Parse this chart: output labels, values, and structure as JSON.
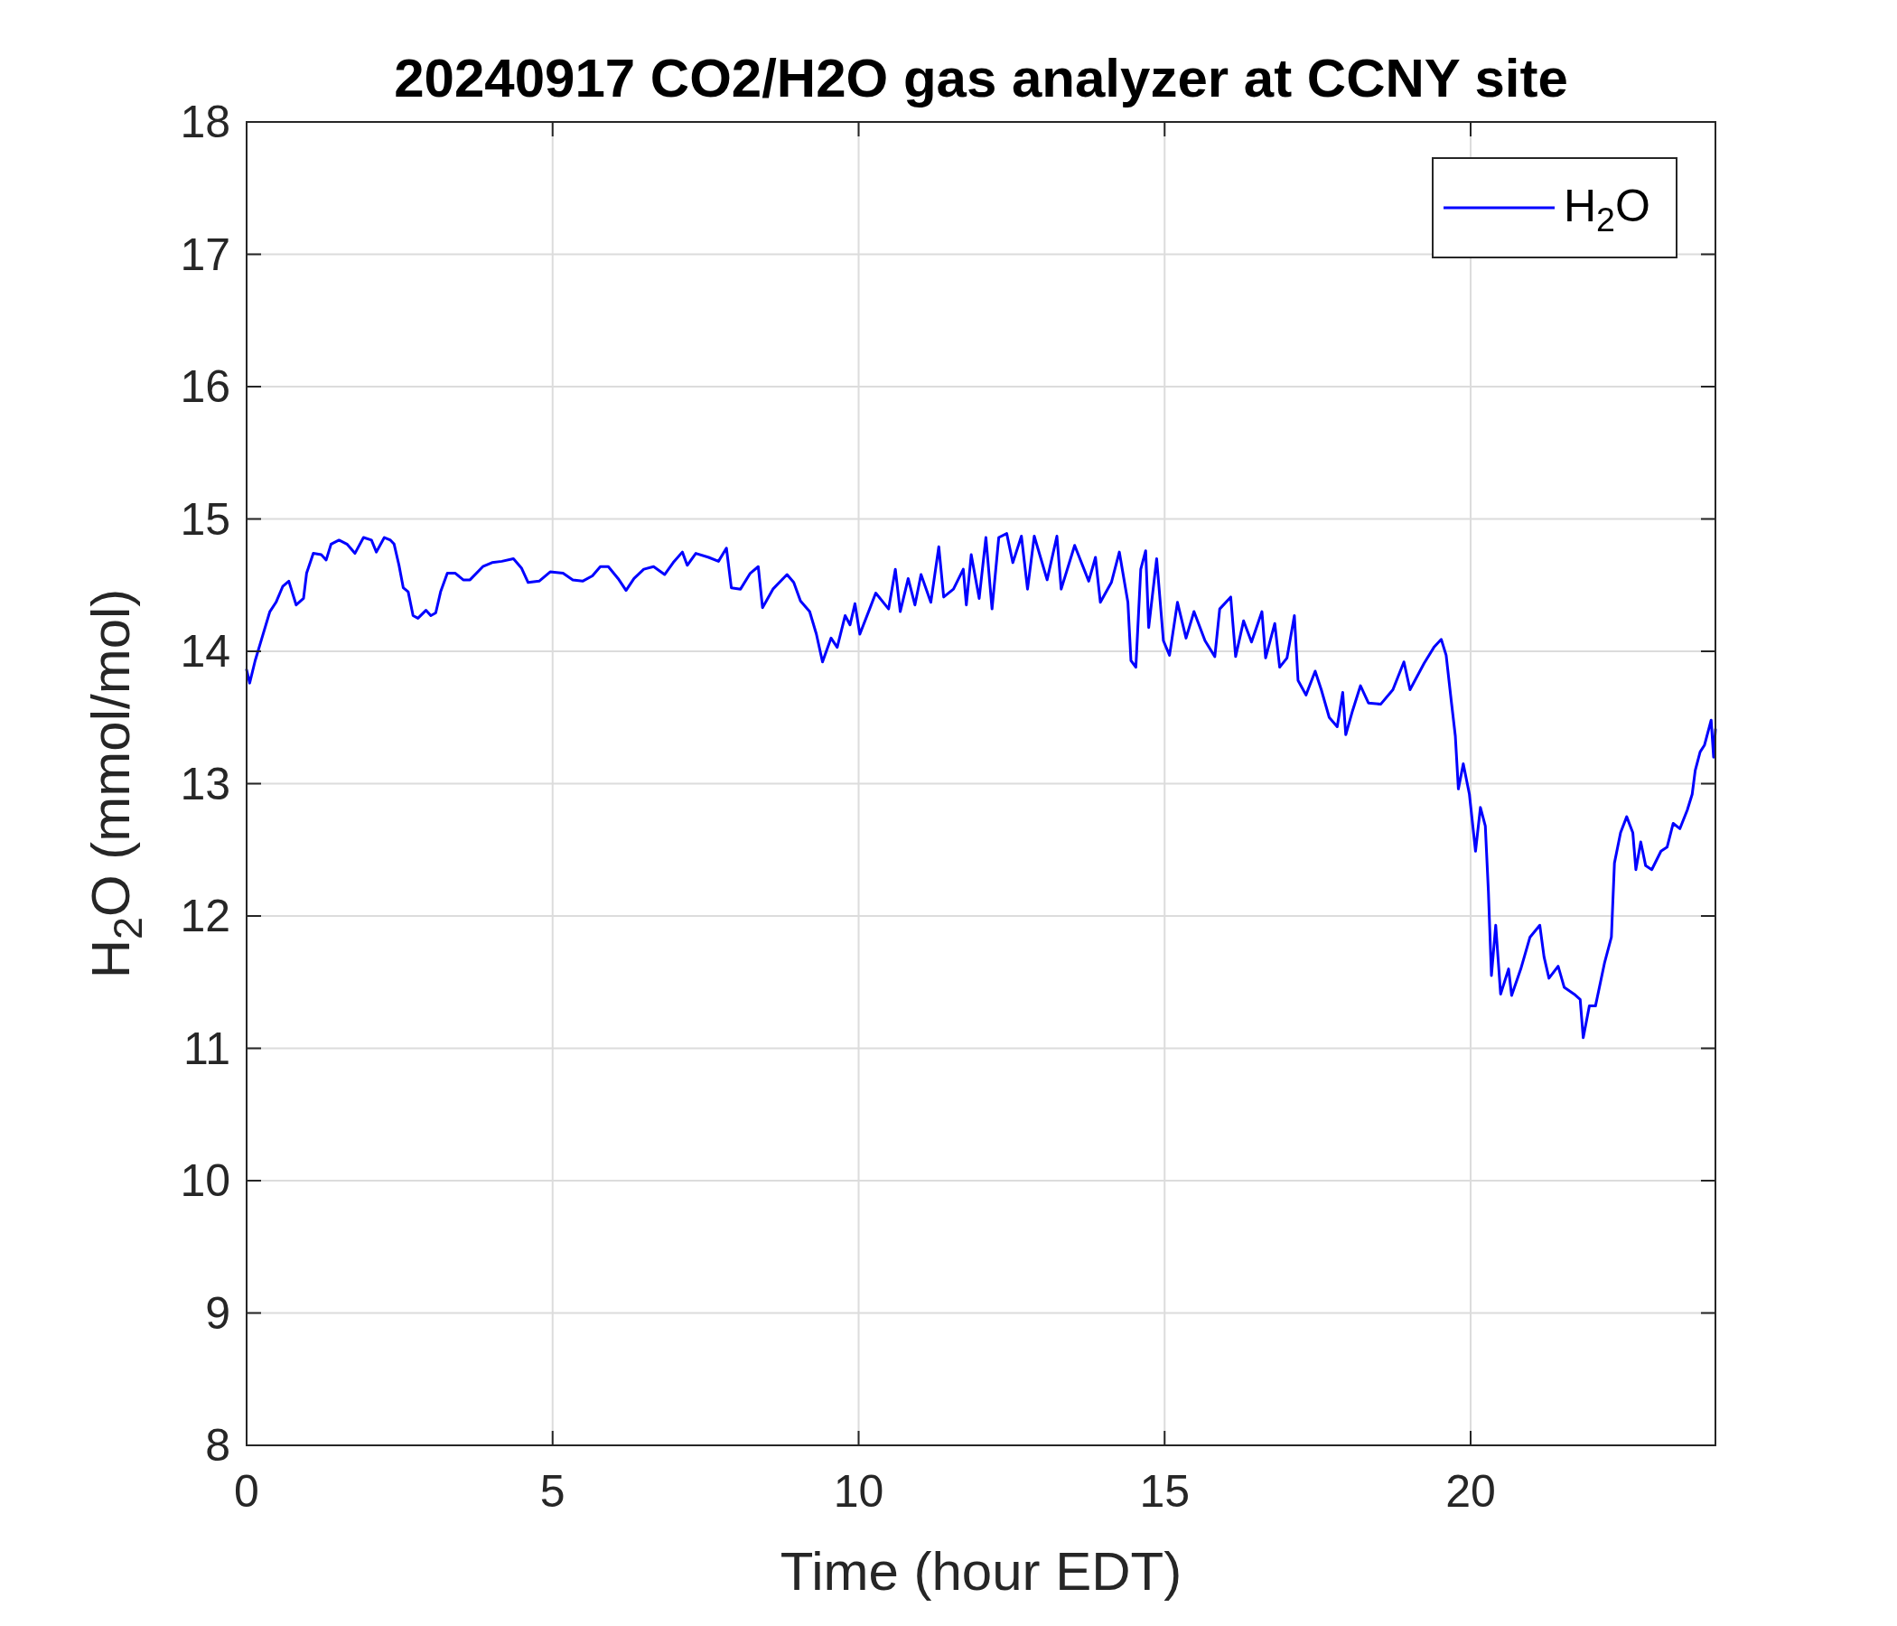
{
  "chart_data": {
    "type": "line",
    "title": "20240917 CO2/H2O gas analyzer at CCNY site",
    "xlabel": "Time (hour EDT)",
    "ylabel": "H$_{2}$O (mmol/mol)",
    "xlim": [
      0,
      24
    ],
    "xticks": [
      0,
      5,
      10,
      15,
      20
    ],
    "ylim": [
      8,
      18
    ],
    "yticks": [
      8,
      9,
      10,
      11,
      12,
      13,
      14,
      15,
      16,
      17,
      18
    ],
    "grid": true,
    "legend": "top right",
    "line_style": "solid",
    "marker": "none",
    "series": [
      {
        "name": "H$_{2}$O",
        "color": "#0000ff",
        "x": [
          0,
          0.05,
          0.14,
          0.25,
          0.38,
          0.48,
          0.59,
          0.69,
          0.81,
          0.93,
          0.98,
          1.09,
          1.22,
          1.3,
          1.38,
          1.51,
          1.64,
          1.77,
          1.91,
          2.04,
          2.12,
          2.25,
          2.35,
          2.41,
          2.49,
          2.56,
          2.64,
          2.72,
          2.8,
          2.93,
          3.01,
          3.09,
          3.17,
          3.28,
          3.41,
          3.54,
          3.65,
          3.86,
          4.01,
          4.17,
          4.36,
          4.49,
          4.6,
          4.78,
          4.96,
          5.17,
          5.33,
          5.49,
          5.65,
          5.78,
          5.91,
          6.07,
          6.2,
          6.33,
          6.49,
          6.65,
          6.83,
          6.97,
          7.12,
          7.2,
          7.34,
          7.55,
          7.71,
          7.84,
          7.92,
          8.07,
          8.23,
          8.36,
          8.43,
          8.6,
          8.83,
          8.94,
          9.05,
          9.2,
          9.31,
          9.41,
          9.55,
          9.65,
          9.78,
          9.86,
          9.94,
          10.02,
          10.18,
          10.28,
          10.49,
          10.6,
          10.68,
          10.81,
          10.92,
          11.02,
          11.18,
          11.31,
          11.39,
          11.55,
          11.71,
          11.76,
          11.84,
          11.97,
          12.08,
          12.18,
          12.29,
          12.42,
          12.52,
          12.66,
          12.76,
          12.87,
          13.08,
          13.24,
          13.31,
          13.53,
          13.76,
          13.87,
          13.95,
          14.13,
          14.26,
          14.4,
          14.45,
          14.53,
          14.61,
          14.69,
          14.74,
          14.87,
          14.98,
          15.08,
          15.21,
          15.35,
          15.48,
          15.66,
          15.82,
          15.9,
          16.08,
          16.16,
          16.29,
          16.42,
          16.59,
          16.65,
          16.8,
          16.88,
          17,
          17.12,
          17.18,
          17.31,
          17.46,
          17.56,
          17.69,
          17.82,
          17.91,
          17.96,
          18.07,
          18.2,
          18.33,
          18.53,
          18.73,
          18.91,
          19.01,
          19.24,
          19.4,
          19.52,
          19.6,
          19.68,
          19.75,
          19.8,
          19.88,
          19.98,
          20.08,
          20.16,
          20.24,
          20.29,
          20.34,
          20.41,
          20.49,
          20.62,
          20.67,
          20.82,
          20.97,
          21.13,
          21.2,
          21.28,
          21.43,
          21.53,
          21.69,
          21.79,
          21.84,
          21.94,
          22.04,
          22.19,
          22.3,
          22.35,
          22.45,
          22.55,
          22.65,
          22.7,
          22.78,
          22.86,
          22.96,
          23.11,
          23.21,
          23.31,
          23.42,
          23.54,
          23.62,
          23.67,
          23.75,
          23.82,
          23.93,
          23.97,
          24
        ],
        "values": [
          13.86,
          13.76,
          13.93,
          14.1,
          14.3,
          14.37,
          14.49,
          14.53,
          14.35,
          14.4,
          14.59,
          14.74,
          14.73,
          14.69,
          14.81,
          14.84,
          14.81,
          14.74,
          14.86,
          14.84,
          14.75,
          14.86,
          14.84,
          14.81,
          14.65,
          14.48,
          14.45,
          14.27,
          14.25,
          14.31,
          14.27,
          14.29,
          14.45,
          14.59,
          14.59,
          14.54,
          14.54,
          14.64,
          14.67,
          14.68,
          14.7,
          14.63,
          14.52,
          14.53,
          14.6,
          14.59,
          14.54,
          14.53,
          14.57,
          14.64,
          14.64,
          14.55,
          14.46,
          14.55,
          14.62,
          14.64,
          14.58,
          14.67,
          14.75,
          14.65,
          14.74,
          14.71,
          14.68,
          14.78,
          14.48,
          14.47,
          14.59,
          14.64,
          14.33,
          14.47,
          14.58,
          14.52,
          14.38,
          14.3,
          14.13,
          13.92,
          14.1,
          14.03,
          14.27,
          14.2,
          14.36,
          14.13,
          14.32,
          14.44,
          14.32,
          14.62,
          14.3,
          14.55,
          14.35,
          14.58,
          14.37,
          14.79,
          14.41,
          14.47,
          14.62,
          14.35,
          14.73,
          14.4,
          14.86,
          14.32,
          14.86,
          14.89,
          14.67,
          14.87,
          14.47,
          14.87,
          14.54,
          14.87,
          14.47,
          14.8,
          14.53,
          14.71,
          14.37,
          14.52,
          14.75,
          14.37,
          13.93,
          13.88,
          14.62,
          14.76,
          14.18,
          14.7,
          14.08,
          13.97,
          14.37,
          14.1,
          14.3,
          14.08,
          13.96,
          14.32,
          14.41,
          13.96,
          14.23,
          14.07,
          14.3,
          13.95,
          14.21,
          13.88,
          13.95,
          14.27,
          13.78,
          13.67,
          13.85,
          13.71,
          13.5,
          13.43,
          13.69,
          13.37,
          13.55,
          13.74,
          13.61,
          13.6,
          13.71,
          13.92,
          13.71,
          13.91,
          14.03,
          14.09,
          13.97,
          13.64,
          13.36,
          12.96,
          13.15,
          12.92,
          12.49,
          12.82,
          12.68,
          12.19,
          11.55,
          11.93,
          11.41,
          11.6,
          11.4,
          11.6,
          11.84,
          11.93,
          11.69,
          11.53,
          11.62,
          11.46,
          11.41,
          11.37,
          11.08,
          11.32,
          11.32,
          11.65,
          11.84,
          12.4,
          12.63,
          12.75,
          12.63,
          12.35,
          12.56,
          12.38,
          12.35,
          12.49,
          12.52,
          12.7,
          12.66,
          12.8,
          12.92,
          13.1,
          13.24,
          13.29,
          13.48,
          13.2,
          13.41
        ]
      }
    ]
  }
}
